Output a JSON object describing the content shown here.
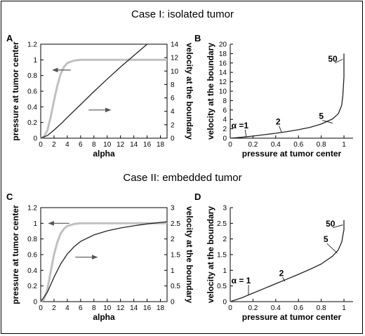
{
  "case_titles": [
    "Case I: isolated tumor",
    "Case II: embedded tumor"
  ],
  "colors": {
    "pressure": "#c0c0c0",
    "velocity": "#222222"
  },
  "chart_data": [
    {
      "panel": "A",
      "type": "line",
      "xlabel": "alpha",
      "ylabel": "pressure at tumor center",
      "y2label": "velocity at the boundary",
      "xlim": [
        0,
        19
      ],
      "ylim": [
        0,
        1.2
      ],
      "y2lim": [
        0,
        14
      ],
      "xticks": [
        0,
        2,
        4,
        6,
        8,
        10,
        12,
        14,
        16,
        18
      ],
      "yticks": [
        0,
        0.2,
        0.4,
        0.6,
        0.8,
        1,
        1.2
      ],
      "y2ticks": [
        0,
        2,
        4,
        6,
        8,
        10,
        12,
        14
      ],
      "series": [
        {
          "axis": "left",
          "color": "#c0c0c0",
          "x": [
            0,
            0.5,
            1,
            1.5,
            2,
            2.5,
            3,
            3.5,
            4,
            5,
            6,
            8,
            10,
            14,
            19
          ],
          "y": [
            0,
            0.02,
            0.1,
            0.27,
            0.48,
            0.67,
            0.82,
            0.91,
            0.96,
            0.99,
            1,
            1,
            1,
            1,
            1
          ]
        },
        {
          "axis": "right",
          "color": "#222222",
          "x": [
            0,
            1,
            2,
            3,
            4,
            6,
            8,
            10,
            12,
            14,
            16
          ],
          "y": [
            0,
            0.4,
            1.2,
            2.1,
            3.1,
            5,
            6.95,
            8.8,
            10.6,
            12.3,
            14
          ]
        }
      ],
      "arrows": [
        {
          "from": [
            4.5,
            0.87
          ],
          "to": [
            1.8,
            0.87
          ],
          "axis": "left"
        },
        {
          "from": [
            7.2,
            4.2
          ],
          "to": [
            10.5,
            4.2
          ],
          "axis": "right"
        }
      ],
      "annotations": []
    },
    {
      "panel": "B",
      "type": "line",
      "xlabel": "pressure at tumor center",
      "ylabel": "velocity at the boundary",
      "xlim": [
        0,
        1.08
      ],
      "ylim": [
        0,
        20
      ],
      "xticks": [
        0,
        0.2,
        0.4,
        0.6,
        0.8,
        1
      ],
      "yticks": [
        0,
        2,
        4,
        6,
        8,
        10,
        12,
        14,
        16,
        18,
        20
      ],
      "series": [
        {
          "color": "#222222",
          "x": [
            0,
            0.1,
            0.2,
            0.3,
            0.4,
            0.5,
            0.6,
            0.7,
            0.8,
            0.9,
            0.95,
            0.98,
            0.99,
            1.0,
            1.0
          ],
          "y": [
            0,
            0.2,
            0.45,
            0.75,
            1.05,
            1.4,
            1.8,
            2.3,
            3,
            4.1,
            5.2,
            7,
            9,
            13,
            18
          ]
        }
      ],
      "arrows": [],
      "annotations": [
        {
          "text": "α =1",
          "x": 0.01,
          "y": 2.1,
          "leader": [
            0.14,
            0.35
          ]
        },
        {
          "text": "2",
          "x": 0.4,
          "y": 2.9,
          "leader": [
            0.45,
            1.3
          ]
        },
        {
          "text": "5",
          "x": 0.78,
          "y": 4.1,
          "leader": [
            0.9,
            3.2
          ]
        },
        {
          "text": "50",
          "x": 0.86,
          "y": 16.3,
          "leader": [
            0.99,
            16.8
          ]
        }
      ]
    },
    {
      "panel": "C",
      "type": "line",
      "xlabel": "alpha",
      "ylabel": "pressure at tumor center",
      "y2label": "velocity at the boundary",
      "xlim": [
        0,
        19
      ],
      "ylim": [
        0,
        1.2
      ],
      "y2lim": [
        0,
        3
      ],
      "xticks": [
        0,
        2,
        4,
        6,
        8,
        10,
        12,
        14,
        16,
        18
      ],
      "yticks": [
        0,
        0.2,
        0.4,
        0.6,
        0.8,
        1,
        1.2
      ],
      "y2ticks": [
        0,
        0.5,
        1,
        1.5,
        2,
        2.5,
        3
      ],
      "series": [
        {
          "axis": "left",
          "color": "#c0c0c0",
          "x": [
            0,
            0.5,
            1,
            1.5,
            2,
            2.5,
            3,
            3.5,
            4,
            5,
            6,
            8,
            10,
            14,
            19
          ],
          "y": [
            0,
            0.03,
            0.16,
            0.38,
            0.6,
            0.76,
            0.87,
            0.93,
            0.965,
            0.99,
            1,
            1,
            1,
            1,
            1
          ]
        },
        {
          "axis": "right",
          "color": "#222222",
          "x": [
            0,
            1,
            2,
            3,
            4,
            5,
            6,
            8,
            10,
            12,
            14,
            16,
            19
          ],
          "y": [
            0,
            0.3,
            0.78,
            1.2,
            1.52,
            1.75,
            1.92,
            2.13,
            2.26,
            2.35,
            2.42,
            2.48,
            2.55
          ]
        }
      ],
      "arrows": [
        {
          "from": [
            4.3,
            1.0
          ],
          "to": [
            1.2,
            1.0
          ],
          "axis": "left"
        },
        {
          "from": [
            5.2,
            1.42
          ],
          "to": [
            8.5,
            1.42
          ],
          "axis": "right"
        }
      ],
      "annotations": []
    },
    {
      "panel": "D",
      "type": "line",
      "xlabel": "pressure at tumor center",
      "ylabel": "velocity at the boundary",
      "xlim": [
        0,
        1.08
      ],
      "ylim": [
        0,
        3
      ],
      "xticks": [
        0,
        0.2,
        0.4,
        0.6,
        0.8,
        1
      ],
      "yticks": [
        0,
        0.5,
        1,
        1.5,
        2,
        2.5,
        3
      ],
      "series": [
        {
          "color": "#222222",
          "x": [
            0,
            0.1,
            0.2,
            0.3,
            0.4,
            0.5,
            0.6,
            0.7,
            0.8,
            0.9,
            0.95,
            0.98,
            1.0,
            1.0
          ],
          "y": [
            0,
            0.12,
            0.27,
            0.42,
            0.57,
            0.72,
            0.87,
            1.03,
            1.2,
            1.45,
            1.65,
            1.9,
            2.3,
            2.6
          ]
        }
      ],
      "arrows": [],
      "annotations": [
        {
          "text": "α = 1",
          "x": 0.01,
          "y": 0.58,
          "leader": [
            0.16,
            0.22
          ]
        },
        {
          "text": "2",
          "x": 0.43,
          "y": 0.82,
          "leader": [
            0.48,
            0.65
          ]
        },
        {
          "text": "5",
          "x": 0.82,
          "y": 1.9,
          "leader": [
            0.94,
            1.55
          ]
        },
        {
          "text": "50",
          "x": 0.84,
          "y": 2.4,
          "leader": [
            0.99,
            2.45
          ]
        }
      ]
    }
  ]
}
